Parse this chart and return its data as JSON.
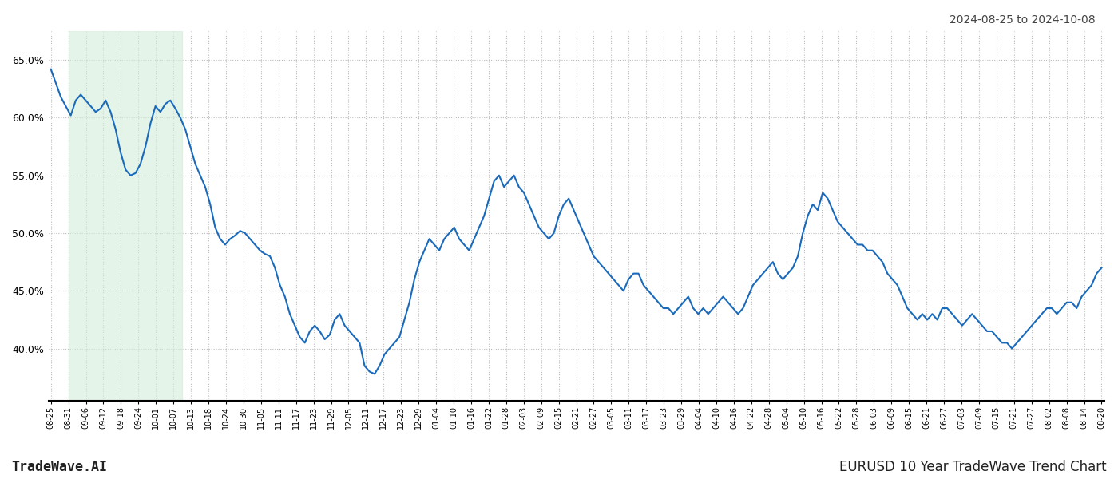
{
  "title_top_right": "2024-08-25 to 2024-10-08",
  "title_bottom_right": "EURUSD 10 Year TradeWave Trend Chart",
  "title_bottom_left": "TradeWave.AI",
  "ylim": [
    35.5,
    67.5
  ],
  "yticks": [
    40.0,
    45.0,
    50.0,
    55.0,
    60.0,
    65.0
  ],
  "line_color": "#1a6abc",
  "line_width": 1.5,
  "shading_color": "#d4edda",
  "shading_alpha": 0.6,
  "background_color": "#ffffff",
  "grid_color": "#bbbbbb",
  "grid_style": ":",
  "x_labels": [
    "08-25",
    "08-31",
    "09-06",
    "09-12",
    "09-18",
    "09-24",
    "10-01",
    "10-07",
    "10-13",
    "10-18",
    "10-24",
    "10-30",
    "11-05",
    "11-11",
    "11-17",
    "11-23",
    "11-29",
    "12-05",
    "12-11",
    "12-17",
    "12-23",
    "12-29",
    "01-04",
    "01-10",
    "01-16",
    "01-22",
    "01-28",
    "02-03",
    "02-09",
    "02-15",
    "02-21",
    "02-27",
    "03-05",
    "03-11",
    "03-17",
    "03-23",
    "03-29",
    "04-04",
    "04-10",
    "04-16",
    "04-22",
    "04-28",
    "05-04",
    "05-10",
    "05-16",
    "05-22",
    "05-28",
    "06-03",
    "06-09",
    "06-15",
    "06-21",
    "06-27",
    "07-03",
    "07-09",
    "07-15",
    "07-21",
    "07-27",
    "08-02",
    "08-08",
    "08-14",
    "08-20"
  ],
  "shading_x_start": "08-31",
  "shading_x_end": "10-12",
  "y_values": [
    64.2,
    63.0,
    61.8,
    61.0,
    60.2,
    61.5,
    62.0,
    61.5,
    61.0,
    60.5,
    60.8,
    61.5,
    60.5,
    59.0,
    57.0,
    55.5,
    55.0,
    55.2,
    56.0,
    57.5,
    59.5,
    61.0,
    60.5,
    61.2,
    61.5,
    60.8,
    60.0,
    59.0,
    57.5,
    56.0,
    55.0,
    54.0,
    52.5,
    50.5,
    49.5,
    49.0,
    49.5,
    49.8,
    50.2,
    50.0,
    49.5,
    49.0,
    48.5,
    48.2,
    48.0,
    47.0,
    45.5,
    44.5,
    43.0,
    42.0,
    41.0,
    40.5,
    41.5,
    42.0,
    41.5,
    40.8,
    41.2,
    42.5,
    43.0,
    42.0,
    41.5,
    41.0,
    40.5,
    38.5,
    38.0,
    37.8,
    38.5,
    39.5,
    40.0,
    40.5,
    41.0,
    42.5,
    44.0,
    46.0,
    47.5,
    48.5,
    49.5,
    49.0,
    48.5,
    49.5,
    50.0,
    50.5,
    49.5,
    49.0,
    48.5,
    49.5,
    50.5,
    51.5,
    53.0,
    54.5,
    55.0,
    54.0,
    54.5,
    55.0,
    54.0,
    53.5,
    52.5,
    51.5,
    50.5,
    50.0,
    49.5,
    50.0,
    51.5,
    52.5,
    53.0,
    52.0,
    51.0,
    50.0,
    49.0,
    48.0,
    47.5,
    47.0,
    46.5,
    46.0,
    45.5,
    45.0,
    46.0,
    46.5,
    46.5,
    45.5,
    45.0,
    44.5,
    44.0,
    43.5,
    43.5,
    43.0,
    43.5,
    44.0,
    44.5,
    43.5,
    43.0,
    43.5,
    43.0,
    43.5,
    44.0,
    44.5,
    44.0,
    43.5,
    43.0,
    43.5,
    44.5,
    45.5,
    46.0,
    46.5,
    47.0,
    47.5,
    46.5,
    46.0,
    46.5,
    47.0,
    48.0,
    50.0,
    51.5,
    52.5,
    52.0,
    53.5,
    53.0,
    52.0,
    51.0,
    50.5,
    50.0,
    49.5,
    49.0,
    49.0,
    48.5,
    48.5,
    48.0,
    47.5,
    46.5,
    46.0,
    45.5,
    44.5,
    43.5,
    43.0,
    42.5,
    43.0,
    42.5,
    43.0,
    42.5,
    43.5,
    43.5,
    43.0,
    42.5,
    42.0,
    42.5,
    43.0,
    42.5,
    42.0,
    41.5,
    41.5,
    41.0,
    40.5,
    40.5,
    40.0,
    40.5,
    41.0,
    41.5,
    42.0,
    42.5,
    43.0,
    43.5,
    43.5,
    43.0,
    43.5,
    44.0,
    44.0,
    43.5,
    44.5,
    45.0,
    45.5,
    46.5,
    47.0
  ]
}
